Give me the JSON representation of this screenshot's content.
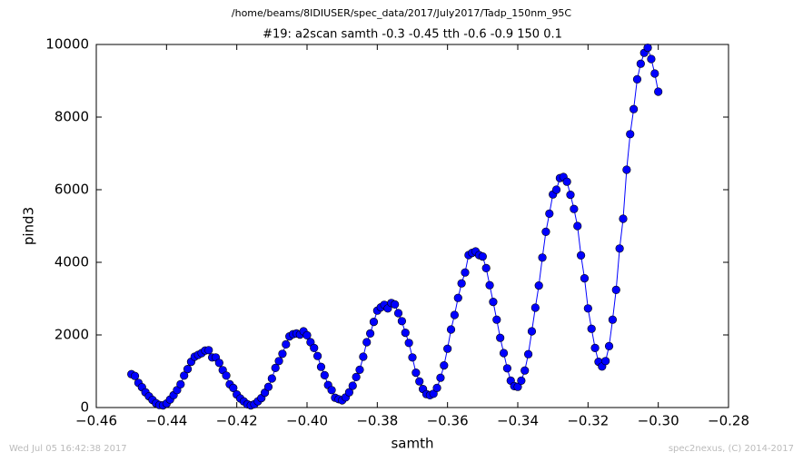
{
  "chart_data": {
    "type": "line",
    "suptitle": "/home/beams/8IDIUSER/spec_data/2017/July2017/Tadp_150nm_95C",
    "title": "#19: a2scan  samth -0.3 -0.45  tth -0.6 -0.9  150 0.1",
    "xlabel": "samth",
    "ylabel": "pind3",
    "footer_left": "Wed Jul 05 16:42:38 2017",
    "footer_right": "spec2nexus, (C) 2014-2017",
    "color": "#0000ff",
    "marker": "o",
    "xlim": [
      -0.46,
      -0.28
    ],
    "xticks": [
      {
        "value": -0.46,
        "label": "−0.46"
      },
      {
        "value": -0.44,
        "label": "−0.44"
      },
      {
        "value": -0.42,
        "label": "−0.42"
      },
      {
        "value": -0.4,
        "label": "−0.40"
      },
      {
        "value": -0.38,
        "label": "−0.38"
      },
      {
        "value": -0.36,
        "label": "−0.36"
      },
      {
        "value": -0.34,
        "label": "−0.34"
      },
      {
        "value": -0.32,
        "label": "−0.32"
      },
      {
        "value": -0.3,
        "label": "−0.30"
      },
      {
        "value": -0.28,
        "label": "−0.28"
      }
    ],
    "ylim": [
      0,
      10000
    ],
    "yticks": [
      0,
      2000,
      4000,
      6000,
      8000,
      10000
    ],
    "x": [
      -0.45,
      -0.449,
      -0.448,
      -0.447,
      -0.446,
      -0.445,
      -0.444,
      -0.443,
      -0.442,
      -0.441,
      -0.44,
      -0.439,
      -0.438,
      -0.437,
      -0.436,
      -0.435,
      -0.434,
      -0.433,
      -0.432,
      -0.431,
      -0.43,
      -0.429,
      -0.428,
      -0.427,
      -0.426,
      -0.425,
      -0.424,
      -0.423,
      -0.422,
      -0.421,
      -0.42,
      -0.419,
      -0.418,
      -0.417,
      -0.416,
      -0.415,
      -0.414,
      -0.413,
      -0.412,
      -0.411,
      -0.41,
      -0.409,
      -0.408,
      -0.407,
      -0.406,
      -0.405,
      -0.404,
      -0.403,
      -0.402,
      -0.401,
      -0.4,
      -0.399,
      -0.398,
      -0.397,
      -0.396,
      -0.395,
      -0.394,
      -0.393,
      -0.392,
      -0.391,
      -0.39,
      -0.389,
      -0.388,
      -0.387,
      -0.386,
      -0.385,
      -0.384,
      -0.383,
      -0.382,
      -0.381,
      -0.38,
      -0.379,
      -0.378,
      -0.377,
      -0.376,
      -0.375,
      -0.374,
      -0.373,
      -0.372,
      -0.371,
      -0.37,
      -0.369,
      -0.368,
      -0.367,
      -0.366,
      -0.365,
      -0.364,
      -0.363,
      -0.362,
      -0.361,
      -0.36,
      -0.359,
      -0.358,
      -0.357,
      -0.356,
      -0.355,
      -0.354,
      -0.353,
      -0.352,
      -0.351,
      -0.35,
      -0.349,
      -0.348,
      -0.347,
      -0.346,
      -0.345,
      -0.344,
      -0.343,
      -0.342,
      -0.341,
      -0.34,
      -0.339,
      -0.338,
      -0.337,
      -0.336,
      -0.335,
      -0.334,
      -0.333,
      -0.332,
      -0.331,
      -0.33,
      -0.329,
      -0.328,
      -0.327,
      -0.326,
      -0.325,
      -0.324,
      -0.323,
      -0.322,
      -0.321,
      -0.32,
      -0.319,
      -0.318,
      -0.317,
      -0.316,
      -0.315,
      -0.314,
      -0.313,
      -0.312,
      -0.311,
      -0.31,
      -0.309,
      -0.308,
      -0.307,
      -0.306,
      -0.305,
      -0.304,
      -0.303,
      -0.302,
      -0.301,
      -0.3
    ],
    "values": [
      920,
      870,
      680,
      560,
      420,
      310,
      210,
      120,
      70,
      60,
      110,
      220,
      340,
      480,
      640,
      880,
      1060,
      1260,
      1400,
      1450,
      1500,
      1570,
      1580,
      1380,
      1380,
      1230,
      1030,
      880,
      640,
      540,
      360,
      250,
      170,
      90,
      60,
      90,
      170,
      260,
      410,
      570,
      800,
      1090,
      1280,
      1480,
      1740,
      1960,
      2020,
      2040,
      2010,
      2100,
      1990,
      1800,
      1640,
      1420,
      1120,
      890,
      620,
      480,
      270,
      230,
      200,
      280,
      420,
      600,
      840,
      1040,
      1400,
      1800,
      2040,
      2360,
      2670,
      2760,
      2830,
      2730,
      2880,
      2840,
      2600,
      2380,
      2060,
      1780,
      1380,
      960,
      720,
      510,
      370,
      340,
      380,
      540,
      820,
      1160,
      1620,
      2150,
      2550,
      3020,
      3420,
      3720,
      4200,
      4260,
      4300,
      4200,
      4160,
      3840,
      3370,
      2910,
      2420,
      1920,
      1500,
      1080,
      740,
      590,
      570,
      740,
      1020,
      1470,
      2100,
      2750,
      3360,
      4130,
      4840,
      5340,
      5870,
      6000,
      6320,
      6350,
      6220,
      5860,
      5470,
      5000,
      4190,
      3560,
      2730,
      2170,
      1640,
      1260,
      1130,
      1280,
      1690,
      2420,
      3240,
      4380,
      5200,
      6550,
      7530,
      8220,
      9040,
      9470,
      9770,
      9910,
      9600,
      9200,
      8700
    ]
  }
}
